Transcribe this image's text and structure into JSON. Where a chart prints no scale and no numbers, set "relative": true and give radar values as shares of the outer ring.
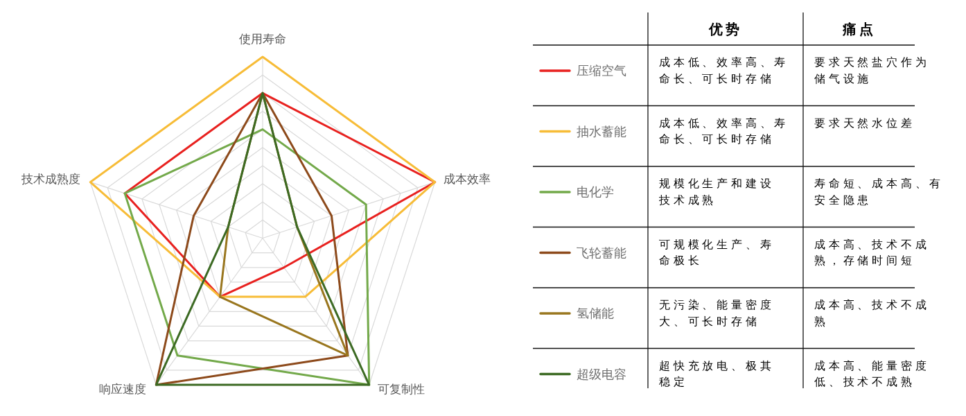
{
  "chart_data": [
    {
      "type": "radar",
      "categories": [
        "使用寿命",
        "成本效率",
        "可复制性",
        "响应速度",
        "技术成熟度"
      ],
      "relative": true,
      "grid": true,
      "legend": "right",
      "series": [
        {
          "name": "压缩空气",
          "color": "#e8211f",
          "values": [
            0.8,
            1,
            0.2,
            0.4,
            0.8
          ]
        },
        {
          "name": "抽水蓄能",
          "color": "#f7bc37",
          "values": [
            1,
            1,
            0.4,
            0.4,
            1
          ]
        },
        {
          "name": "电化学",
          "color": "#73a94a",
          "values": [
            0.6,
            0.6,
            1,
            0.8,
            0.8
          ]
        },
        {
          "name": "飞轮蓄能",
          "color": "#8d4a1b",
          "values": [
            0.8,
            0.4,
            0.8,
            1,
            0.4
          ]
        },
        {
          "name": "氢储能",
          "color": "#99761e",
          "values": [
            0.8,
            0.2,
            0.8,
            0.4,
            0.2
          ]
        },
        {
          "name": "超级电容",
          "color": "#3c6a23",
          "values": [
            0.8,
            0.2,
            1,
            1,
            0.2
          ]
        }
      ]
    },
    {
      "type": "other",
      "categories": [
        "优势",
        "痛点"
      ],
      "annotations": [
        "成本低、效率高、寿命长、可长时存储",
        "要求天然盐穴作为储气设施",
        "成本低、效率高、寿命长、可长时存储",
        "要求天然水位差",
        "规模化生产和建设技术成熟",
        "寿命短、成本高、有安全隐患",
        "可规模化生产、寿命极长",
        "成本高、技术不成熟，存储时间短",
        "无污染、能量密度大、可长时存储",
        "成本高、技术不成熟",
        "超快充放电、极其稳定",
        "成本高、能量密度低、技术不成熟"
      ]
    }
  ]
}
